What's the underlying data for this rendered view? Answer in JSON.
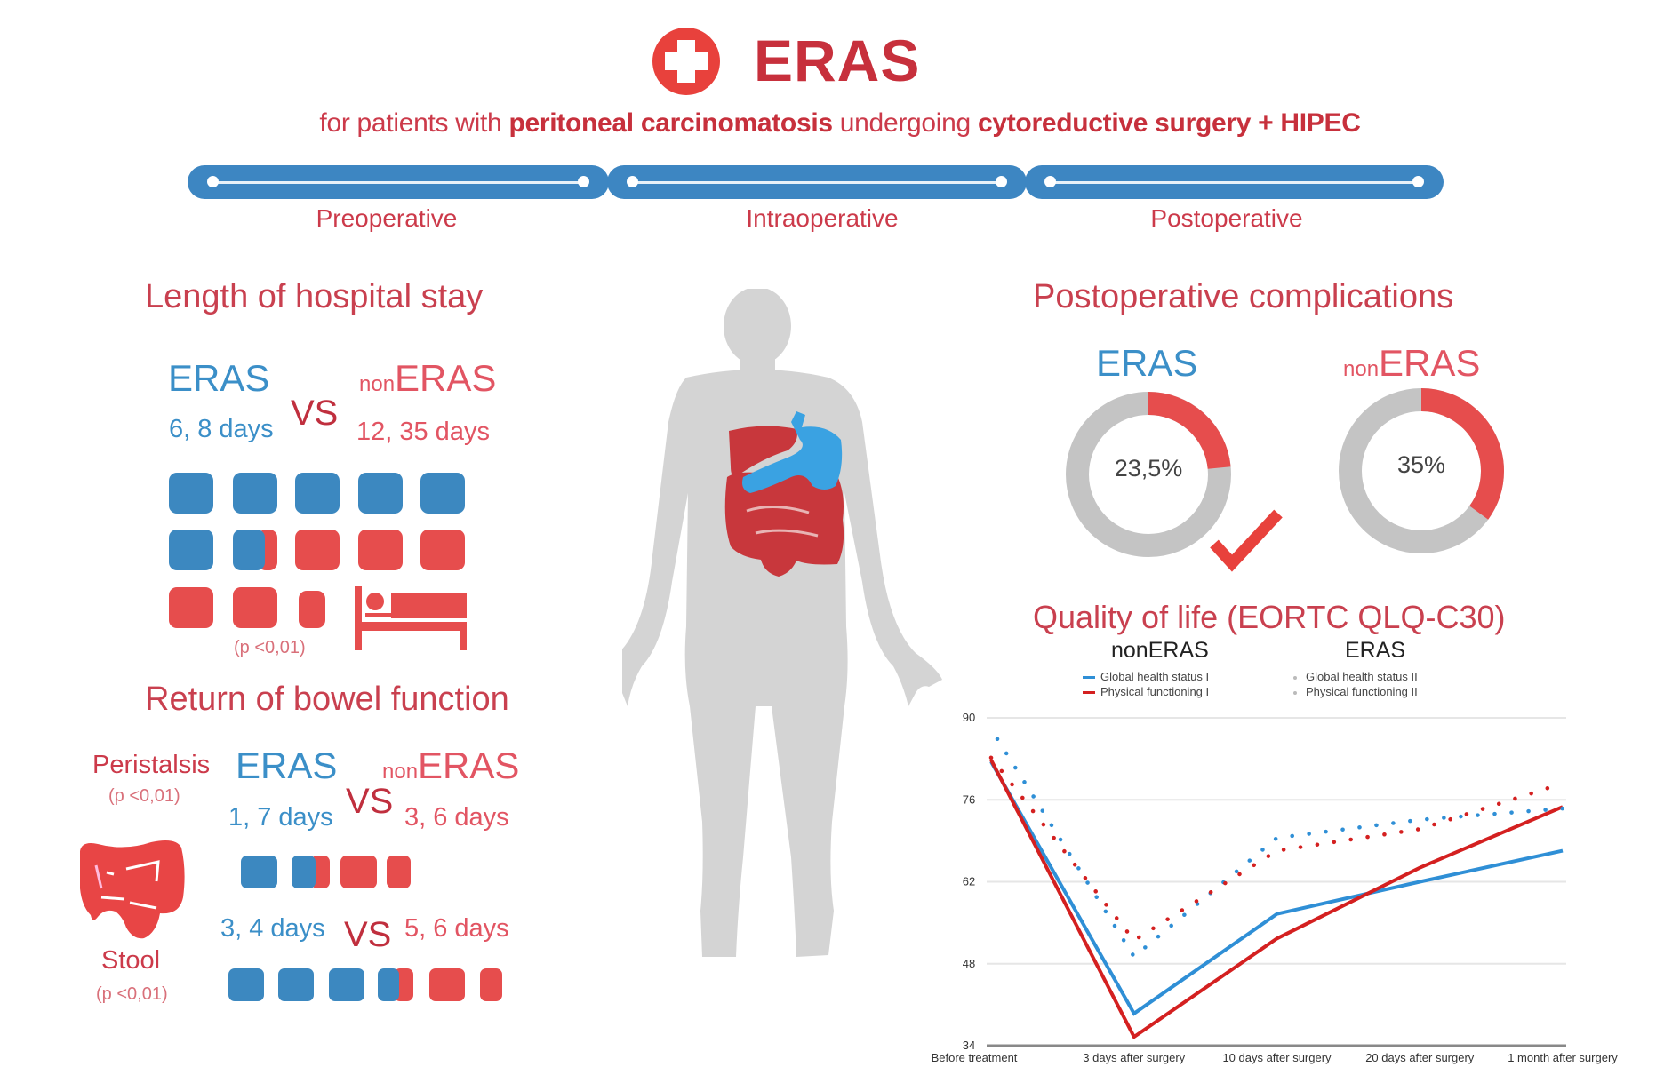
{
  "header": {
    "icon": "medical-cross-icon",
    "title": "ERAS",
    "subtitle_parts": [
      {
        "text": "for patients with ",
        "bold": false
      },
      {
        "text": "peritoneal carcinomatosis",
        "bold": true
      },
      {
        "text": " undergoing ",
        "bold": false
      },
      {
        "text": "cytoreductive surgery + HIPEC",
        "bold": true
      }
    ]
  },
  "timeline": {
    "phases": [
      "Preoperative",
      "Intraoperative",
      "Postoperative"
    ]
  },
  "colors": {
    "eras_blue": "#3c88c0",
    "nonEras_red": "#e64d4d",
    "heading_red": "#c9404f",
    "body_gray": "#d4d4d4",
    "donut_gray": "#c4c4c4"
  },
  "hospital_stay": {
    "title": "Length of hospital stay",
    "eras_label": "ERAS",
    "non_prefix": "non",
    "non_label": "ERAS",
    "vs": "VS",
    "eras_value": "6, 8 days",
    "non_value": "12, 35 days",
    "eras_days": 6.8,
    "non_days": 12.35,
    "p_value": "(p <0,01)",
    "icon": "hospital-bed-icon"
  },
  "bowel": {
    "title": "Return of bowel function",
    "icon": "colon-icon",
    "peristalsis": {
      "label": "Peristalsis",
      "p_value": "(p <0,01)",
      "eras_label": "ERAS",
      "non_prefix": "non",
      "non_label": "ERAS",
      "vs": "VS",
      "eras_value": "1, 7 days",
      "non_value": "3, 6 days",
      "eras_days": 1.7,
      "non_days": 3.6
    },
    "stool": {
      "label": "Stool",
      "p_value": "(p <0,01)",
      "vs": "VS",
      "eras_value": "3, 4 days",
      "non_value": "5, 6 days",
      "eras_days": 3.4,
      "non_days": 5.6
    }
  },
  "figure": {
    "icon": "human-body-icon",
    "organs": [
      "liver",
      "stomach",
      "intestines"
    ]
  },
  "complications": {
    "title": "Postoperative complications",
    "eras": {
      "label": "ERAS",
      "value_text": "23,5%",
      "percent": 23.5
    },
    "non": {
      "prefix": "non",
      "label": "ERAS",
      "value_text": "35%",
      "percent": 35
    },
    "check_icon": "checkmark-icon"
  },
  "quality_of_life": {
    "title": "Quality of life (EORTC QLQ-C30)",
    "group_left": "nonERAS",
    "group_right": "ERAS"
  },
  "chart_data": {
    "type": "line",
    "title": "Quality of life (EORTC QLQ-C30)",
    "xlabel": "",
    "ylabel": "",
    "categories": [
      "Before treatment",
      "3 days after surgery",
      "10 days after surgery",
      "20 days after surgery",
      "1 month after surgery"
    ],
    "yticks": [
      34,
      48,
      62,
      76,
      90
    ],
    "ylim": [
      34,
      90
    ],
    "grid": true,
    "legend_groups": [
      {
        "title": "nonERAS",
        "entries": [
          "Global health status I",
          "Physical functioning I"
        ]
      },
      {
        "title": "ERAS",
        "entries": [
          "Global health status II",
          "Physical functioning II"
        ]
      }
    ],
    "series": [
      {
        "name": "Global health status I",
        "group": "nonERAS",
        "style": "solid",
        "color": "#2f8fd6",
        "values": [
          82.5,
          39.5,
          56.5,
          62,
          67.3
        ]
      },
      {
        "name": "Physical functioning I",
        "group": "nonERAS",
        "style": "solid",
        "color": "#d42020",
        "values": [
          82.8,
          35.5,
          52.3,
          64.4,
          74.8
        ]
      },
      {
        "name": "Global health status II",
        "group": "ERAS",
        "style": "dotted",
        "color": "#2f8fd6",
        "values": [
          86.4,
          49.2,
          69.5,
          72.6,
          74.5
        ]
      },
      {
        "name": "Physical functioning II",
        "group": "ERAS",
        "style": "dotted",
        "color": "#d42020",
        "values": [
          83.2,
          52.0,
          67.3,
          71.0,
          78.8
        ]
      }
    ]
  }
}
